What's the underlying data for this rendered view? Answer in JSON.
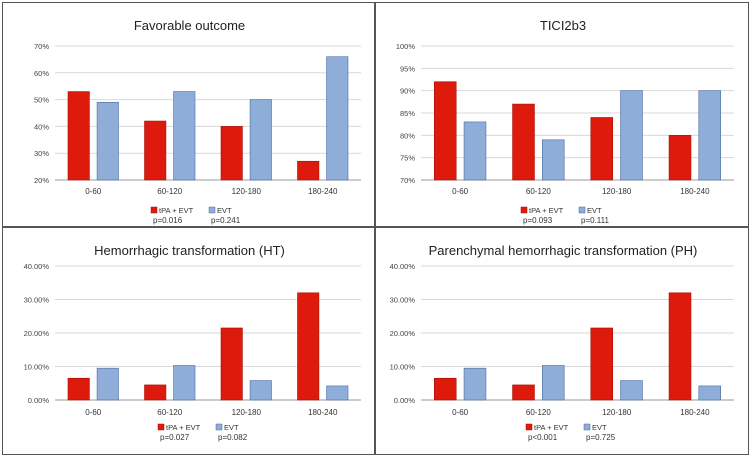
{
  "colors": {
    "tpa": "#dd1a0c",
    "evt": "#8fadd9",
    "tpa_edge": "#a61206",
    "evt_edge": "#4a6ba0",
    "grid": "#d9d9d9",
    "axis": "#999999"
  },
  "chart_data": [
    {
      "type": "bar",
      "title": "Favorable outcome",
      "categories": [
        "0-60",
        "60-120",
        "120-180",
        "180-240"
      ],
      "series": [
        {
          "name": "tPA + EVT",
          "values": [
            53,
            42,
            40,
            27
          ],
          "pvalue": "p=0.016"
        },
        {
          "name": "EVT",
          "values": [
            49,
            53,
            50,
            66
          ],
          "pvalue": "p=0.241"
        }
      ],
      "ylim": [
        20,
        70
      ],
      "yticks": [
        20,
        30,
        40,
        50,
        60,
        70
      ],
      "ytick_labels": [
        "20%",
        "30%",
        "40%",
        "50%",
        "60%",
        "70%"
      ],
      "grid": true,
      "legend": "bottom"
    },
    {
      "type": "bar",
      "title": "TICI2b3",
      "categories": [
        "0-60",
        "60-120",
        "120-180",
        "180-240"
      ],
      "series": [
        {
          "name": "tPA + EVT",
          "values": [
            92,
            87,
            84,
            80
          ],
          "pvalue": "p=0.093"
        },
        {
          "name": "EVT",
          "values": [
            83,
            79,
            90,
            90
          ],
          "pvalue": "p=0.111"
        }
      ],
      "ylim": [
        70,
        100
      ],
      "yticks": [
        70,
        75,
        80,
        85,
        90,
        95,
        100
      ],
      "ytick_labels": [
        "70%",
        "75%",
        "80%",
        "85%",
        "90%",
        "95%",
        "100%"
      ],
      "grid": true,
      "legend": "bottom"
    },
    {
      "type": "bar",
      "title": "Hemorrhagic transformation (HT)",
      "categories": [
        "0-60",
        "60-120",
        "120-180",
        "180-240"
      ],
      "series": [
        {
          "name": "tPA + EVT",
          "values": [
            6.5,
            4.5,
            21.5,
            32
          ],
          "pvalue": "p=0.027"
        },
        {
          "name": "EVT",
          "values": [
            9.5,
            10.3,
            5.8,
            4.2
          ],
          "pvalue": "p=0.082"
        }
      ],
      "ylim": [
        0,
        40
      ],
      "yticks": [
        0,
        10,
        20,
        30,
        40
      ],
      "ytick_labels": [
        "0.00%",
        "10.00%",
        "20.00%",
        "30.00%",
        "40.00%"
      ],
      "grid": true,
      "legend": "bottom"
    },
    {
      "type": "bar",
      "title": "Parenchymal hemorrhagic transformation (PH)",
      "categories": [
        "0-60",
        "60-120",
        "120-180",
        "180-240"
      ],
      "series": [
        {
          "name": "tPA + EVT",
          "values": [
            6.5,
            4.5,
            21.5,
            32
          ],
          "pvalue": "p<0.001"
        },
        {
          "name": "EVT",
          "values": [
            9.5,
            10.3,
            5.8,
            4.2
          ],
          "pvalue": "p=0.725"
        }
      ],
      "ylim": [
        0,
        40
      ],
      "yticks": [
        0,
        10,
        20,
        30,
        40
      ],
      "ytick_labels": [
        "0.00%",
        "10.00%",
        "20.00%",
        "30.00%",
        "40.00%"
      ],
      "grid": true,
      "legend": "bottom"
    }
  ]
}
